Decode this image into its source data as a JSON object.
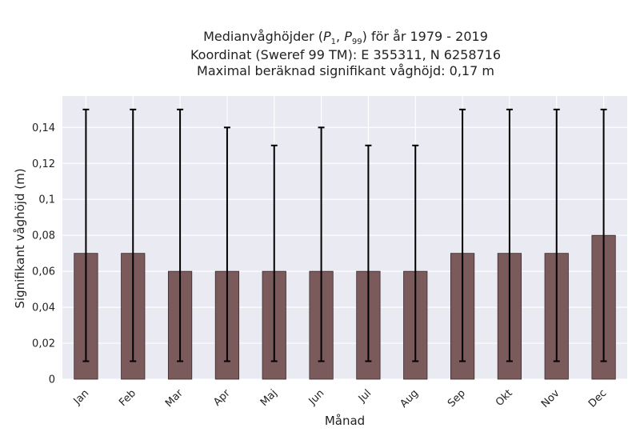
{
  "chart_data": {
    "type": "bar",
    "title": {
      "line1_prefix": "Medianvåghöjder (",
      "p_low_symbol": "P",
      "p_low_sub": "1",
      "separator": ", ",
      "p_high_symbol": "P",
      "p_high_sub": "99",
      "line1_suffix": ") för år 1979 - 2019",
      "line2": "Koordinat (Sweref 99 TM): E 355311, N 6258716",
      "line3": "Maximal beräknad signifikant våghöjd: 0,17 m"
    },
    "xlabel": "Månad",
    "ylabel": "Signifikant våghöjd (m)",
    "categories": [
      "Jan",
      "Feb",
      "Mar",
      "Apr",
      "Maj",
      "Jun",
      "Jul",
      "Aug",
      "Sep",
      "Okt",
      "Nov",
      "Dec"
    ],
    "values": [
      0.07,
      0.07,
      0.06,
      0.06,
      0.06,
      0.06,
      0.06,
      0.06,
      0.07,
      0.07,
      0.07,
      0.08
    ],
    "error_low": [
      0.01,
      0.01,
      0.01,
      0.01,
      0.01,
      0.01,
      0.01,
      0.01,
      0.01,
      0.01,
      0.01,
      0.01
    ],
    "error_high": [
      0.15,
      0.15,
      0.15,
      0.14,
      0.13,
      0.14,
      0.13,
      0.13,
      0.15,
      0.15,
      0.15,
      0.15
    ],
    "yticks": [
      {
        "value": 0,
        "label": "0"
      },
      {
        "value": 0.02,
        "label": "0,02"
      },
      {
        "value": 0.04,
        "label": "0,04"
      },
      {
        "value": 0.06,
        "label": "0,06"
      },
      {
        "value": 0.08,
        "label": "0,08"
      },
      {
        "value": 0.1,
        "label": "0,1"
      },
      {
        "value": 0.12,
        "label": "0,12"
      },
      {
        "value": 0.14,
        "label": "0,14"
      }
    ],
    "ylim": [
      0,
      0.1575
    ],
    "grid": true,
    "colors": {
      "bar": "#7b5a5c",
      "bar_edge": "#3a2a2b",
      "plot_background": "#eaeaf2",
      "grid": "#ffffff",
      "error_bar": "#000000"
    }
  }
}
